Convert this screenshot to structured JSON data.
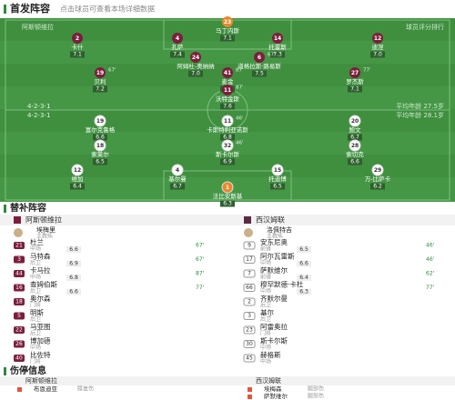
{
  "header": {
    "title": "首发阵容",
    "subtitle": "点击球员可查看本场详细数据"
  },
  "pitch": {
    "home_label": "阿斯顿维拉",
    "rank_label": "球员评分排行",
    "home_formation": "4-2-3-1",
    "home_info": "平均年龄 27.5岁",
    "away_formation": "4-2-3-1",
    "away_info": "平均年龄 28.1岁",
    "home_lines": [
      [
        {
          "number": "23",
          "name": "马丁内斯",
          "rating": "7.1"
        }
      ],
      [
        {
          "number": "2",
          "name": "卡什",
          "rating": "7.1"
        },
        {
          "number": "4",
          "name": "孔萨",
          "rating": "7.4"
        },
        {
          "number": "14",
          "name": "托雷斯",
          "rating": "7.3"
        },
        {
          "number": "12",
          "name": "迪涅",
          "rating": "7.0"
        }
      ],
      [
        {
          "number": "24",
          "name": "阿姆杜-奥纳纳",
          "rating": "7.0"
        },
        {
          "number": "6",
          "name": "道格拉斯·路易斯",
          "rating": "7.5",
          "event": "67'"
        }
      ],
      [
        {
          "number": "19",
          "name": "贝利",
          "rating": "7.2",
          "event": "67'"
        },
        {
          "number": "41",
          "name": "麦金",
          "rating": "7.8",
          "event": "87'"
        },
        {
          "number": "27",
          "name": "罗杰斯",
          "rating": "7.1",
          "event": "77'"
        }
      ],
      [
        {
          "number": "11",
          "name": "沃特金斯",
          "rating": "7.6",
          "event": "87'"
        }
      ]
    ],
    "away_lines": [
      [
        {
          "number": "19",
          "name": "富尔克鲁格",
          "rating": "6.6"
        },
        {
          "number": "11",
          "name": "卡斯特利亚诺斯",
          "rating": "6.8",
          "event": "46'"
        },
        {
          "number": "20",
          "name": "鲍文",
          "rating": "6.7"
        }
      ],
      [
        {
          "number": "18",
          "name": "索莱尔",
          "rating": "6.5"
        },
        {
          "number": "32",
          "name": "斯卡尔斯",
          "rating": "6.9",
          "event": "46'"
        },
        {
          "number": "28",
          "name": "索切克",
          "rating": "6.6"
        }
      ],
      [
        {
          "number": "12",
          "name": "维加",
          "rating": "6.4"
        },
        {
          "number": "4",
          "name": "基尔曼",
          "rating": "6.7"
        },
        {
          "number": "15",
          "name": "托迪博",
          "rating": "6.5"
        },
        {
          "number": "29",
          "name": "万-比萨卡",
          "rating": "6.2"
        }
      ],
      [
        {
          "number": "1",
          "name": "法比安斯基",
          "rating": "6.3"
        }
      ]
    ]
  },
  "subs": {
    "title": "替补阵容",
    "home_team": "阿斯顿维拉",
    "away_team": "西汉姆联",
    "home_coach": {
      "name": "埃梅里",
      "role": "主教练"
    },
    "away_coach": {
      "name": "洛佩特吉",
      "role": "主教练"
    },
    "home": [
      {
        "number": "21",
        "name": "杜兰",
        "position": "中场",
        "rating": "6.6",
        "event": "67'"
      },
      {
        "number": "3",
        "name": "马特森",
        "position": "后卫",
        "rating": "6.9",
        "event": "67'"
      },
      {
        "number": "44",
        "name": "卡马拉",
        "position": "中场",
        "rating": "6.8",
        "event": "87'"
      },
      {
        "number": "16",
        "name": "查姆伯斯",
        "position": "后卫",
        "rating": "6.6",
        "event": "77'"
      },
      {
        "number": "18",
        "name": "奥尔森",
        "position": "门将"
      },
      {
        "number": "5",
        "name": "明斯",
        "position": "后卫"
      },
      {
        "number": "22",
        "name": "马亚图",
        "position": "后卫"
      },
      {
        "number": "26",
        "name": "博加德",
        "position": "中场"
      },
      {
        "number": "40",
        "name": "比佐特",
        "position": "门将"
      }
    ],
    "away": [
      {
        "number": "9",
        "name": "安东尼奥",
        "position": "前锋",
        "rating": "6.5",
        "event": "46'"
      },
      {
        "number": "17",
        "name": "阿尔瓦雷斯",
        "position": "中场",
        "rating": "6.6",
        "event": "46'"
      },
      {
        "number": "7",
        "name": "萨默维尔",
        "position": "前锋",
        "rating": "6.4",
        "event": "62'"
      },
      {
        "number": "66",
        "name": "穆罕默德·卡杜",
        "position": "中场",
        "rating": "6.3",
        "event": "77'"
      },
      {
        "number": "2",
        "name": "齐默尔曼",
        "position": "后卫"
      },
      {
        "number": "3",
        "name": "基尔",
        "position": "后卫"
      },
      {
        "number": "23",
        "name": "阿雷奥拉",
        "position": "门将"
      },
      {
        "number": "30",
        "name": "斯卡尔斯",
        "position": "中场"
      },
      {
        "number": "45",
        "name": "赫格斯",
        "position": "中场"
      }
    ]
  },
  "injuries": {
    "title": "伤停信息",
    "home_team": "阿斯顿维拉",
    "away_team": "西汉姆联",
    "home": [
      {
        "name": "布恩迪亚",
        "reason": "膝盖伤"
      }
    ],
    "away": [
      {
        "name": "埃梅森",
        "reason": "腿部伤"
      },
      {
        "name": "萨默维尔",
        "reason": "腿部伤"
      }
    ]
  }
}
